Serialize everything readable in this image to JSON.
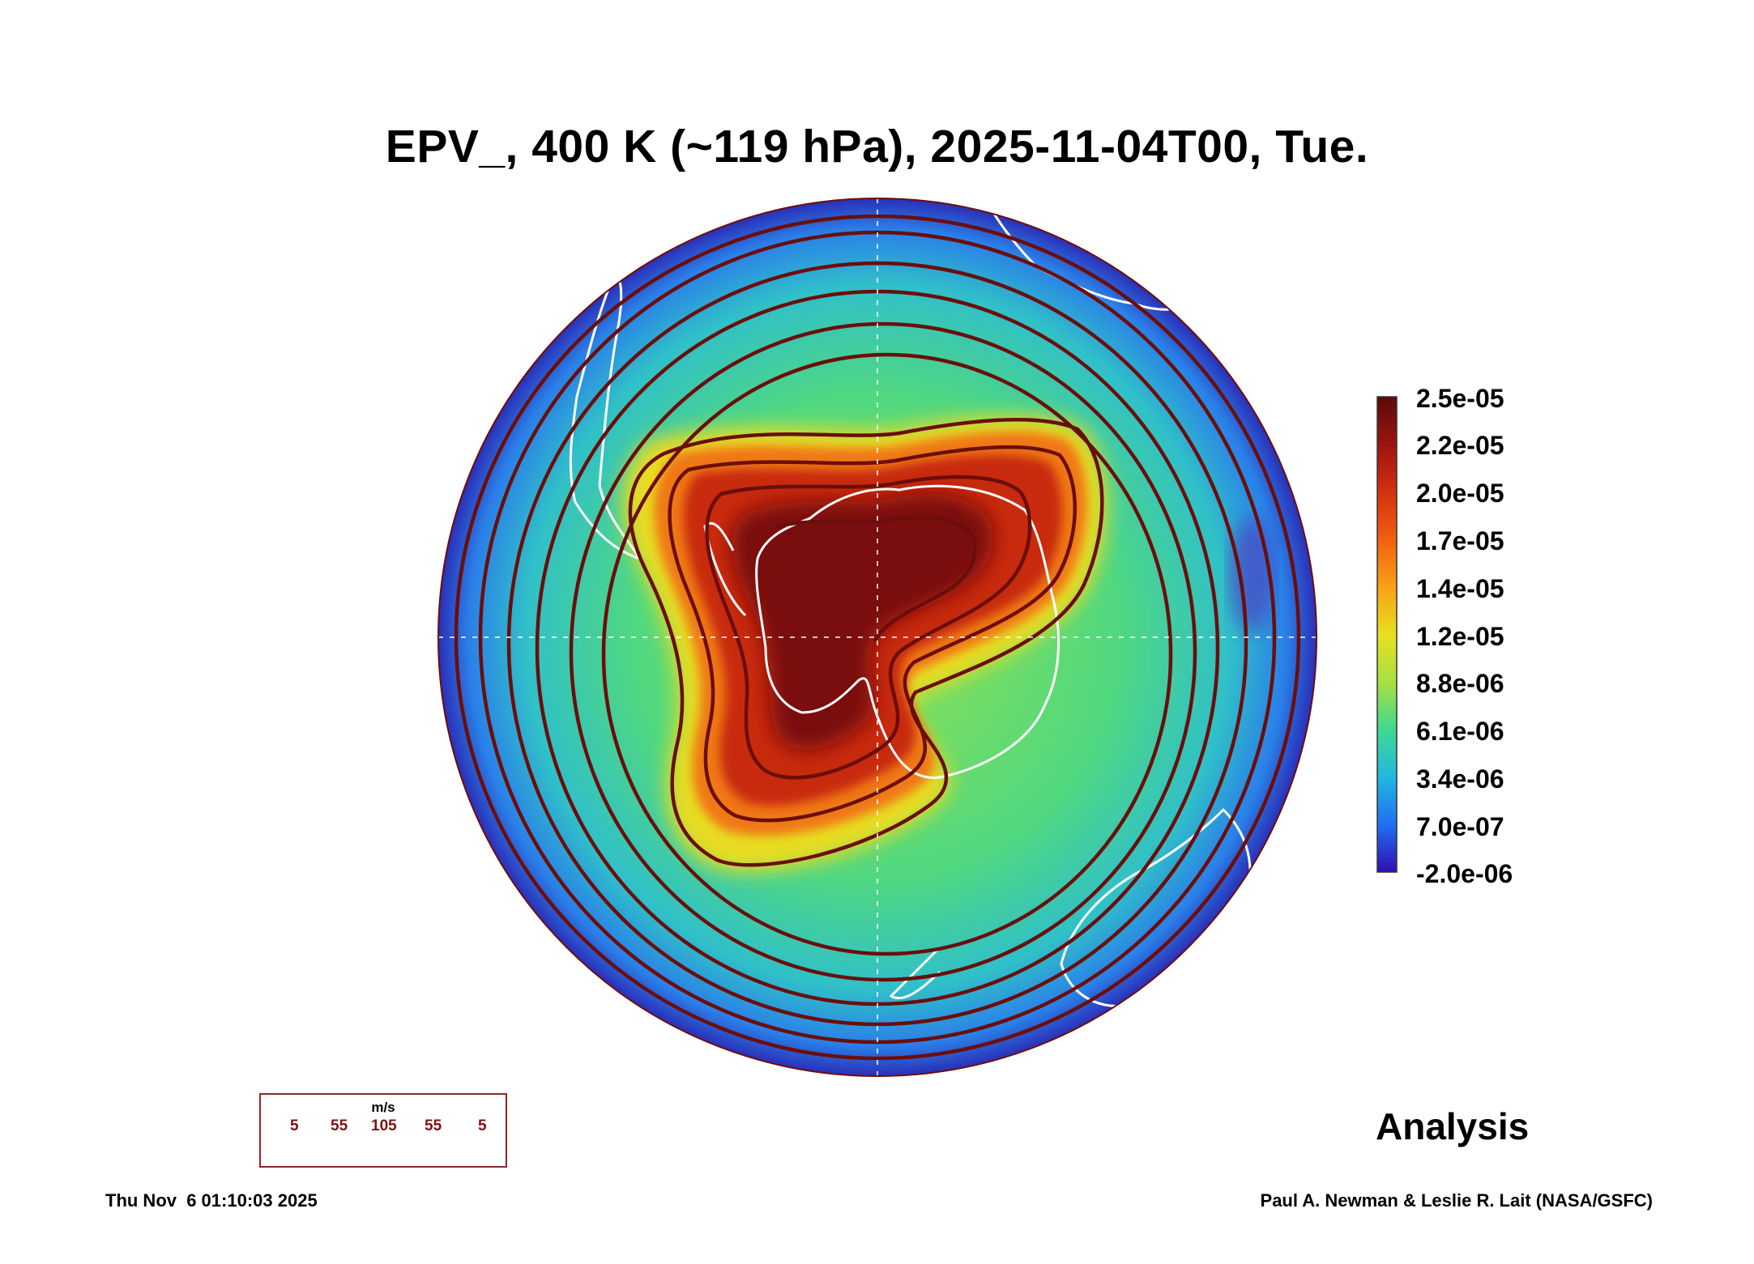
{
  "title": "EPV_, 400 K (~119 hPa), 2025-11-04T00, Tue.",
  "colorbar": {
    "labels": [
      "2.5e-05",
      "2.2e-05",
      "2.0e-05",
      "1.7e-05",
      "1.4e-05",
      "1.2e-05",
      "8.8e-06",
      "6.1e-06",
      "3.4e-06",
      "7.0e-07",
      "-2.0e-06"
    ],
    "colors": [
      "#5a0a08",
      "#9c1410",
      "#d43010",
      "#f06010",
      "#f8a018",
      "#e8e020",
      "#a8e040",
      "#40d890",
      "#20b8e0",
      "#2070f0",
      "#3010b0"
    ]
  },
  "legend": {
    "unit": "m/s",
    "values": [
      "5",
      "55",
      "105",
      "55",
      "5"
    ],
    "arrow_color": "#6b0e0b"
  },
  "analysis_label": "Analysis",
  "footer": {
    "timestamp": "Thu Nov  6 01:10:03 2025",
    "credit": "Paul A. Newman & Leslie R. Lait (NASA/GSFC)"
  }
}
